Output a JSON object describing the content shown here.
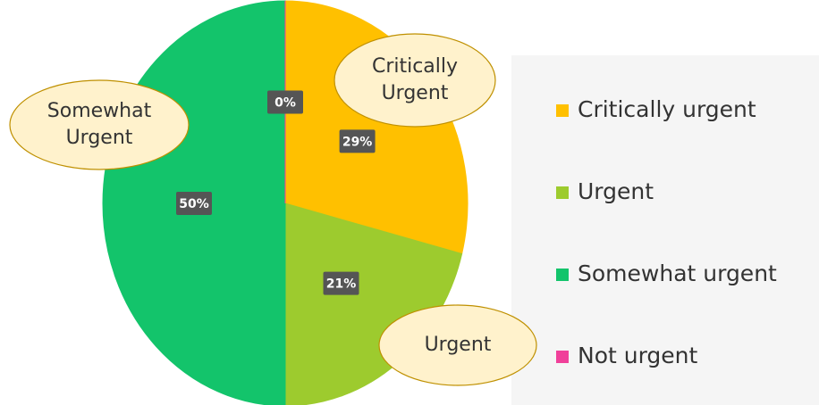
{
  "chart_data": {
    "type": "pie",
    "categories": [
      "Critically urgent",
      "Urgent",
      "Somewhat urgent",
      "Not urgent"
    ],
    "values": [
      29,
      21,
      50,
      0
    ],
    "value_labels": [
      "29%",
      "21%",
      "50%",
      "0%"
    ],
    "colors": [
      "#ffc000",
      "#9dcb2e",
      "#13c46b",
      "#f0409a"
    ],
    "legend": "right",
    "annotations": [
      {
        "lines": [
          "Critically",
          "Urgent"
        ]
      },
      {
        "lines": [
          "Somewhat",
          "Urgent"
        ]
      },
      {
        "lines": [
          "Urgent"
        ]
      }
    ]
  }
}
